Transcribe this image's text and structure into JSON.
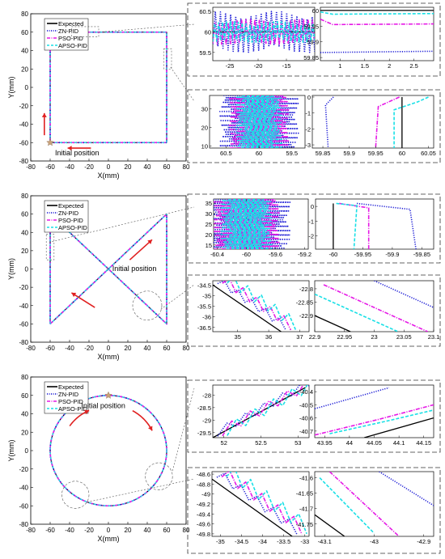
{
  "colors": {
    "expected": "#000000",
    "zn": "#1f1fd6",
    "pso": "#e619e6",
    "apso": "#19e0e6",
    "arrow": "#e02020",
    "start_marker": "#c9a37a",
    "frame": "#555555"
  },
  "chart_data": [
    {
      "id": "main-square",
      "type": "line",
      "xlabel": "X(mm)",
      "ylabel": "Y(mm)",
      "xlim": [
        -80,
        80
      ],
      "ylim": [
        -80,
        80
      ],
      "xticks": [
        -80,
        -60,
        -40,
        -20,
        0,
        20,
        40,
        60,
        80
      ],
      "yticks": [
        -80,
        -60,
        -40,
        -20,
        0,
        20,
        40,
        60,
        80
      ],
      "legend": [
        "Expected",
        "ZN-PID",
        "PSO-PID",
        "APSO-PID"
      ],
      "annotation": "Initial position",
      "start": [
        -60,
        -60
      ],
      "path": [
        [
          -60,
          -60
        ],
        [
          -60,
          60
        ],
        [
          60,
          60
        ],
        [
          60,
          -60
        ],
        [
          -60,
          -60
        ]
      ]
    },
    {
      "id": "main-bowtie",
      "type": "line",
      "xlabel": "X(mm)",
      "ylabel": "Y(mm)",
      "xlim": [
        -80,
        80
      ],
      "ylim": [
        -80,
        80
      ],
      "xticks": [
        -80,
        -60,
        -40,
        -20,
        0,
        20,
        40,
        60,
        80
      ],
      "yticks": [
        -80,
        -60,
        -40,
        -20,
        0,
        20,
        40,
        60,
        80
      ],
      "legend": [
        "Expected",
        "ZN-PID",
        "PSO-PID",
        "APSO-PID"
      ],
      "annotation": "Initial position",
      "path": [
        [
          -60,
          -60
        ],
        [
          -60,
          60
        ],
        [
          60,
          -60
        ],
        [
          60,
          60
        ],
        [
          -60,
          -60
        ]
      ]
    },
    {
      "id": "main-circle",
      "type": "line",
      "xlabel": "X(mm)",
      "ylabel": "Y(mm)",
      "xlim": [
        -80,
        80
      ],
      "ylim": [
        -80,
        80
      ],
      "xticks": [
        -80,
        -60,
        -40,
        -20,
        0,
        20,
        40,
        60,
        80
      ],
      "yticks": [
        -80,
        -60,
        -40,
        -20,
        0,
        20,
        40,
        60,
        80
      ],
      "legend": [
        "Expected",
        "ZN-PID",
        "PSO-PID",
        "APSO-PID"
      ],
      "annotation": "Initial position",
      "center": [
        0,
        0
      ],
      "radius": 60,
      "start": [
        0,
        60
      ]
    },
    {
      "id": "inset-square-top",
      "type": "line",
      "xlim": [
        -28,
        -10
      ],
      "ylim": [
        59.3,
        60.6
      ],
      "xticks": [
        "-25",
        "-20",
        "-15"
      ],
      "yticks": [
        "59.5",
        "60",
        "60.5"
      ],
      "expected": [
        [
          -28,
          60
        ],
        [
          -10,
          60
        ]
      ],
      "series": [
        {
          "name": "ZN-PID",
          "amplitude": 0.5,
          "oscillating": true
        },
        {
          "name": "PSO-PID",
          "amplitude": 0.3,
          "oscillating": true
        },
        {
          "name": "APSO-PID",
          "amplitude": 0.25,
          "oscillating": true
        }
      ]
    },
    {
      "id": "inset-square-top-detail",
      "type": "line",
      "xlim": [
        0.6,
        2.9
      ],
      "ylim": [
        59.84,
        60.01
      ],
      "xticks": [
        "1",
        "1.5",
        "2",
        "2.5"
      ],
      "yticks": [
        "59.85",
        "59.9",
        "59.95",
        "60"
      ],
      "expected": [
        [
          0.6,
          60
        ],
        [
          2.9,
          60
        ]
      ],
      "series": [
        {
          "name": "ZN-PID",
          "values": [
            [
              0.6,
              59.866
            ],
            [
              2.9,
              59.87
            ]
          ]
        },
        {
          "name": "PSO-PID",
          "values": [
            [
              0.6,
              59.972
            ],
            [
              0.85,
              59.955
            ],
            [
              2.9,
              59.957
            ]
          ]
        },
        {
          "name": "APSO-PID",
          "values": [
            [
              0.6,
              59.995
            ],
            [
              0.85,
              59.988
            ],
            [
              2.9,
              59.99
            ]
          ]
        }
      ]
    },
    {
      "id": "inset-square-left",
      "type": "line",
      "xlim": [
        -60.75,
        -59.3
      ],
      "ylim": [
        9,
        37
      ],
      "xticks": [
        "59.5",
        "60",
        "60.5"
      ],
      "yticks": [
        "10",
        "20",
        "30"
      ],
      "expected": [
        [
          -60,
          9
        ],
        [
          -60,
          37
        ]
      ],
      "series": [
        {
          "name": "ZN-PID",
          "amplitude": 0.6,
          "oscillating": true
        },
        {
          "name": "PSO-PID",
          "amplitude": 0.45,
          "oscillating": true
        },
        {
          "name": "APSO-PID",
          "amplitude": 0.35,
          "oscillating": true
        }
      ]
    },
    {
      "id": "inset-square-left-detail",
      "type": "line",
      "xlim": [
        59.83,
        60.06
      ],
      "ylim": [
        -3.2,
        0.1
      ],
      "xticks": [
        "59.85",
        "59.9",
        "59.95",
        "60",
        "60.05"
      ],
      "yticks": [
        "0",
        "-1",
        "-2",
        "-3"
      ],
      "expected": [
        [
          60,
          -3.2
        ],
        [
          60,
          0
        ]
      ],
      "series": [
        {
          "name": "ZN-PID",
          "values": [
            [
              59.87,
              0
            ],
            [
              59.855,
              -0.5
            ],
            [
              59.86,
              -3.2
            ]
          ]
        },
        {
          "name": "PSO-PID",
          "values": [
            [
              59.995,
              0
            ],
            [
              59.955,
              -0.6
            ],
            [
              59.95,
              -3.2
            ]
          ]
        },
        {
          "name": "APSO-PID",
          "values": [
            [
              60.05,
              0
            ],
            [
              60.03,
              -0.3
            ],
            [
              59.985,
              -0.8
            ],
            [
              59.985,
              -3.2
            ]
          ]
        }
      ]
    },
    {
      "id": "inset-bowtie-left",
      "type": "line",
      "xlim": [
        -60.45,
        -59.15
      ],
      "ylim": [
        13,
        37
      ],
      "xticks": [
        "-60.4",
        "-60",
        "-59.6",
        "-59.2"
      ],
      "yticks": [
        "15",
        "20",
        "25",
        "30",
        "35"
      ],
      "expected": [
        [
          -60,
          13
        ],
        [
          -60,
          37
        ]
      ],
      "series": [
        {
          "name": "ZN-PID",
          "amplitude": 0.6,
          "oscillating": true
        },
        {
          "name": "PSO-PID",
          "amplitude": 0.45,
          "oscillating": true
        },
        {
          "name": "APSO-PID",
          "amplitude": 0.35,
          "oscillating": true
        }
      ]
    },
    {
      "id": "inset-bowtie-left-detail",
      "type": "line",
      "xlim": [
        -60.03,
        -59.83
      ],
      "ylim": [
        -2.9,
        0.5
      ],
      "xticks": [
        "-60",
        "-59.95",
        "-59.9",
        "-59.85"
      ],
      "yticks": [
        "0",
        "-1",
        "-2"
      ],
      "expected": [
        [
          -60,
          -2.9
        ],
        [
          -60,
          0.2
        ]
      ],
      "series": [
        {
          "name": "ZN-PID",
          "values": [
            [
              -59.96,
              0.2
            ],
            [
              -59.87,
              -0.2
            ],
            [
              -59.86,
              -2.9
            ]
          ]
        },
        {
          "name": "PSO-PID",
          "values": [
            [
              -59.99,
              0.2
            ],
            [
              -59.94,
              -0.1
            ],
            [
              -59.94,
              -2.9
            ]
          ]
        },
        {
          "name": "APSO-PID",
          "values": [
            [
              -59.995,
              0.2
            ],
            [
              -59.96,
              0.05
            ],
            [
              -59.965,
              -2.9
            ]
          ]
        }
      ]
    },
    {
      "id": "inset-bowtie-diag",
      "type": "line",
      "xlim": [
        34.2,
        37.3
      ],
      "ylim": [
        -36.7,
        -34.3
      ],
      "xticks": [
        "35",
        "36",
        "37"
      ],
      "yticks": [
        "-34.5",
        "-35",
        "-35.5",
        "-36",
        "-36.5"
      ],
      "expected": [
        [
          34.2,
          -34.5
        ],
        [
          36.4,
          -36.7
        ]
      ],
      "series": [
        {
          "name": "ZN-PID",
          "zigzag": true
        },
        {
          "name": "PSO-PID",
          "zigzag": true
        },
        {
          "name": "APSO-PID",
          "zigzag": true
        }
      ]
    },
    {
      "id": "inset-bowtie-diag-detail",
      "type": "line",
      "xlim": [
        22.9,
        23.1
      ],
      "ylim": [
        -22.96,
        -22.77
      ],
      "xticks": [
        "22.9",
        "22.95",
        "23",
        "23.05",
        "23.1"
      ],
      "yticks": [
        "-22.8",
        "-22.85",
        "-22.9"
      ],
      "expected": [
        [
          22.9,
          -22.9
        ],
        [
          22.96,
          -22.96
        ]
      ],
      "series": [
        {
          "name": "ZN-PID",
          "values": [
            [
              23.0,
              -22.77
            ],
            [
              23.1,
              -22.87
            ]
          ]
        },
        {
          "name": "PSO-PID",
          "values": [
            [
              22.915,
              -22.785
            ],
            [
              23.09,
              -22.96
            ]
          ]
        },
        {
          "name": "APSO-PID",
          "values": [
            [
              22.9,
              -22.82
            ],
            [
              23.04,
              -22.96
            ]
          ]
        }
      ]
    },
    {
      "id": "inset-circle-top",
      "type": "line",
      "xlim": [
        51.85,
        53.15
      ],
      "ylim": [
        -29.7,
        -27.6
      ],
      "xticks": [
        "52",
        "52.5",
        "53"
      ],
      "yticks": [
        "-28",
        "-28.5",
        "-29",
        "-29.5"
      ],
      "expected": [
        [
          51.85,
          -29.7
        ],
        [
          53.1,
          -27.7
        ]
      ],
      "series": [
        {
          "name": "ZN-PID",
          "zigzag": true
        },
        {
          "name": "PSO-PID",
          "zigzag": true
        },
        {
          "name": "APSO-PID",
          "zigzag": true
        }
      ]
    },
    {
      "id": "inset-circle-top-detail",
      "type": "line",
      "xlim": [
        43.93,
        44.17
      ],
      "ylim": [
        -40.75,
        -40.35
      ],
      "xticks": [
        "43.95",
        "44",
        "44.05",
        "44.1",
        "44.15"
      ],
      "yticks": [
        "-40.4",
        "-40.5",
        "-40.6",
        "-40.7"
      ],
      "expected": [
        [
          44.03,
          -40.75
        ],
        [
          44.17,
          -40.6
        ]
      ],
      "series": [
        {
          "name": "ZN-PID",
          "values": [
            [
              43.93,
              -40.53
            ],
            [
              44.08,
              -40.37
            ]
          ]
        },
        {
          "name": "PSO-PID",
          "values": [
            [
              43.93,
              -40.73
            ],
            [
              44.06,
              -40.61
            ],
            [
              44.17,
              -40.5
            ]
          ]
        },
        {
          "name": "APSO-PID",
          "values": [
            [
              43.96,
              -40.72
            ],
            [
              44.08,
              -40.62
            ],
            [
              44.17,
              -40.54
            ]
          ]
        }
      ]
    },
    {
      "id": "inset-circle-bottom",
      "type": "line",
      "xlim": [
        -35.2,
        -32.9
      ],
      "ylim": [
        -49.85,
        -48.55
      ],
      "xticks": [
        "-35",
        "-34.5",
        "-34",
        "-33.5",
        "-33"
      ],
      "yticks": [
        "-48.6",
        "-48.8",
        "-49",
        "-49.2",
        "-49.4",
        "-49.6",
        "-49.8"
      ],
      "expected": [
        [
          -35.2,
          -48.7
        ],
        [
          -33.3,
          -49.85
        ]
      ],
      "series": [
        {
          "name": "ZN-PID",
          "zigzag": true
        },
        {
          "name": "PSO-PID",
          "zigzag": true
        },
        {
          "name": "APSO-PID",
          "zigzag": true
        }
      ]
    },
    {
      "id": "inset-circle-bottom-detail",
      "type": "line",
      "xlim": [
        -43.12,
        -42.88
      ],
      "ylim": [
        -41.79,
        -41.58
      ],
      "xticks": [
        "-43.1",
        "-43",
        "-42.9"
      ],
      "yticks": [
        "-41.6",
        "-41.65",
        "-41.7",
        "-41.75"
      ],
      "expected": [
        [
          -43.12,
          -41.72
        ],
        [
          -43.06,
          -41.79
        ]
      ],
      "series": [
        {
          "name": "ZN-PID",
          "values": [
            [
              -42.99,
              -41.58
            ],
            [
              -42.88,
              -41.69
            ]
          ]
        },
        {
          "name": "PSO-PID",
          "values": [
            [
              -43.09,
              -41.58
            ],
            [
              -42.95,
              -41.79
            ]
          ]
        },
        {
          "name": "APSO-PID",
          "values": [
            [
              -43.11,
              -41.6
            ],
            [
              -43.0,
              -41.78
            ]
          ]
        }
      ]
    }
  ]
}
